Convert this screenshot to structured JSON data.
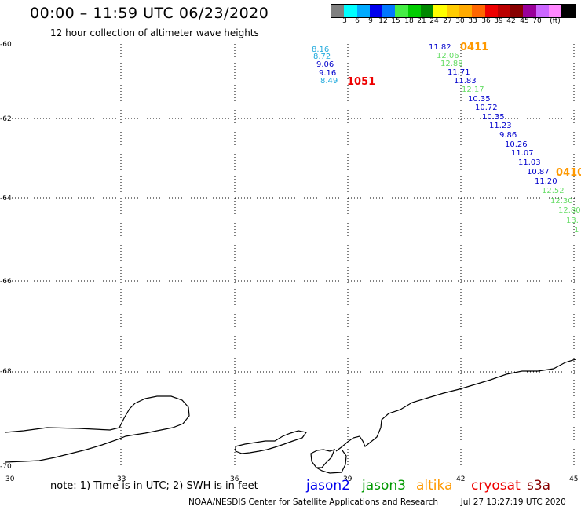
{
  "title": "00:00 – 11:59 UTC 06/23/2020",
  "subtitle": "12 hour collection of altimeter wave heights",
  "colorbar": {
    "unit": "(ft)",
    "colors": [
      "#808080",
      "#00ffff",
      "#00aaff",
      "#0000ee",
      "#0077ff",
      "#44ee44",
      "#00cc00",
      "#008800",
      "#ffff00",
      "#ffcc00",
      "#ffaa00",
      "#ff6600",
      "#ee0000",
      "#bb0000",
      "#880000",
      "#990099",
      "#cc66ff",
      "#ff88ff",
      "#000000"
    ],
    "labels": [
      "3",
      "6",
      "9",
      "12",
      "15",
      "18",
      "21",
      "24",
      "27",
      "30",
      "33",
      "36",
      "39",
      "42",
      "45",
      "70"
    ]
  },
  "axes": {
    "x_ticks": [
      "30",
      "33",
      "36",
      "39",
      "42",
      "45"
    ],
    "y_ticks": [
      "-60",
      "-62",
      "-64",
      "-66",
      "-68",
      "-70"
    ]
  },
  "passes": [
    {
      "label": "1051",
      "color": "#ee0000"
    },
    {
      "label": "0411",
      "color": "#ff9900"
    },
    {
      "label": "0410",
      "color": "#ff9900"
    }
  ],
  "observations": {
    "track_a": [
      {
        "value": "8.16",
        "color": "#22aadd"
      },
      {
        "value": "8.72",
        "color": "#22aadd"
      },
      {
        "value": "9.06",
        "color": "#0000cc"
      },
      {
        "value": "9.16",
        "color": "#0000cc"
      },
      {
        "value": "8.49",
        "color": "#22aadd"
      }
    ],
    "track_b": [
      {
        "value": "11.82",
        "color": "#0000cc"
      },
      {
        "value": "12.06",
        "color": "#66dd66"
      },
      {
        "value": "12.88",
        "color": "#66dd66"
      },
      {
        "value": "11.71",
        "color": "#0000cc"
      },
      {
        "value": "11.83",
        "color": "#0000cc"
      },
      {
        "value": "12.17",
        "color": "#66dd66"
      },
      {
        "value": "10.35",
        "color": "#0000cc"
      },
      {
        "value": "10.72",
        "color": "#0000cc"
      },
      {
        "value": "10.35",
        "color": "#0000cc"
      },
      {
        "value": "11.23",
        "color": "#0000cc"
      },
      {
        "value": "9.86",
        "color": "#0000cc"
      },
      {
        "value": "10.26",
        "color": "#0000cc"
      },
      {
        "value": "11.07",
        "color": "#0000cc"
      },
      {
        "value": "11.03",
        "color": "#0000cc"
      },
      {
        "value": "10.87",
        "color": "#0000cc"
      },
      {
        "value": "11.20",
        "color": "#0000cc"
      },
      {
        "value": "12.52",
        "color": "#66dd66"
      },
      {
        "value": "12.30",
        "color": "#66dd66"
      },
      {
        "value": "12.80",
        "color": "#66dd66"
      },
      {
        "value": "13.",
        "color": "#66dd66"
      },
      {
        "value": "1",
        "color": "#66dd66"
      }
    ]
  },
  "note": "note:  1) Time is in UTC;  2) SWH is in feet",
  "legend": [
    {
      "label": "jason2",
      "color": "#0000ee"
    },
    {
      "label": "jason3",
      "color": "#009900"
    },
    {
      "label": "altika",
      "color": "#ff9900"
    },
    {
      "label": "cryosat",
      "color": "#ee0000"
    },
    {
      "label": "s3a",
      "color": "#880000"
    }
  ],
  "credit": "NOAA/NESDIS Center for Satellite Applications and Research",
  "generated": "Jul 27 13:27:19 UTC 2020"
}
